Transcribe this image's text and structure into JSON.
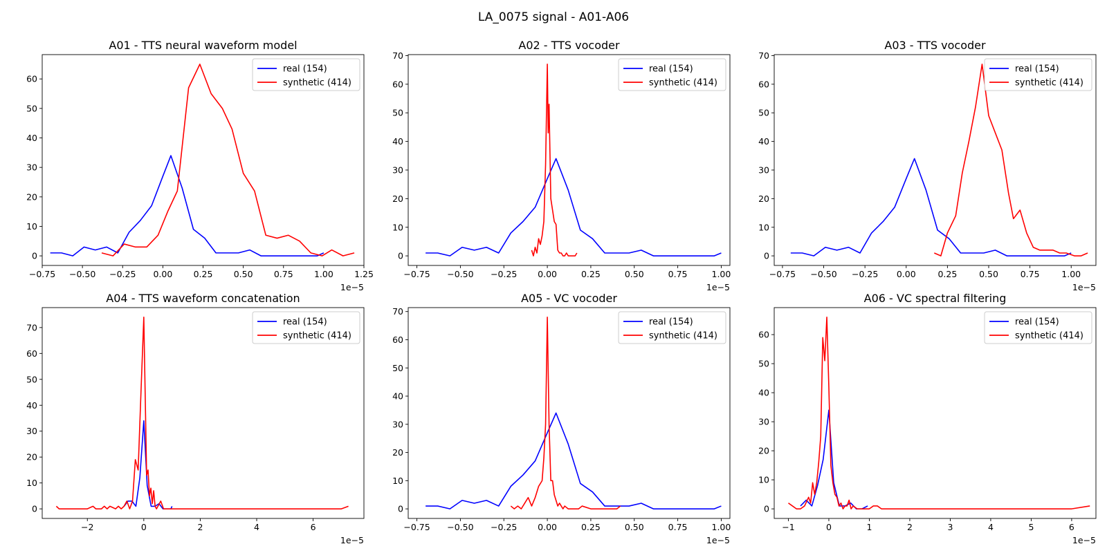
{
  "figure": {
    "suptitle": "LA_0075 signal - A01-A06"
  },
  "colors": {
    "real": "#0000ff",
    "synthetic": "#ff0000"
  },
  "chart_data": [
    {
      "type": "line",
      "title": "A01 - TTS neural waveform model",
      "xlim": [
        -0.75,
        1.25
      ],
      "ylim": [
        -3.25,
        68.25
      ],
      "xticks": [
        -0.75,
        -0.5,
        -0.25,
        0.0,
        0.25,
        0.5,
        0.75,
        1.0,
        1.25
      ],
      "xtick_labels": [
        "−0.75",
        "−0.50",
        "−0.25",
        "0.00",
        "0.25",
        "0.50",
        "0.75",
        "1.00",
        "1.25"
      ],
      "yticks": [
        0,
        10,
        20,
        30,
        40,
        50,
        60
      ],
      "offset_text": "1e−5",
      "legend": {
        "position": "upper-right"
      },
      "series": [
        {
          "name": "real (154)",
          "color": "real",
          "x": [
            -0.7,
            -0.63,
            -0.56,
            -0.49,
            -0.42,
            -0.35,
            -0.28,
            -0.21,
            -0.14,
            -0.07,
            0.0,
            0.05,
            0.12,
            0.19,
            0.26,
            0.33,
            0.4,
            0.47,
            0.54,
            0.61,
            0.68,
            0.75,
            0.82,
            0.89,
            0.96,
            1.0
          ],
          "y": [
            1,
            1,
            0,
            3,
            2,
            3,
            1,
            8,
            12,
            17,
            27,
            34,
            23,
            9,
            6,
            1,
            1,
            1,
            2,
            0,
            0,
            0,
            0,
            0,
            0,
            1
          ]
        },
        {
          "name": "synthetic (414)",
          "color": "synthetic",
          "x": [
            -0.38,
            -0.31,
            -0.24,
            -0.17,
            -0.1,
            -0.03,
            0.03,
            0.09,
            0.16,
            0.23,
            0.3,
            0.37,
            0.43,
            0.5,
            0.57,
            0.64,
            0.71,
            0.78,
            0.85,
            0.92,
            0.99,
            1.05,
            1.12,
            1.19
          ],
          "y": [
            1,
            0,
            4,
            3,
            3,
            7,
            15,
            22,
            57,
            65,
            55,
            50,
            43,
            28,
            22,
            7,
            6,
            7,
            5,
            1,
            0,
            2,
            0,
            1
          ]
        }
      ]
    },
    {
      "type": "line",
      "title": "A02 - TTS vocoder",
      "xlim": [
        -0.8,
        1.05
      ],
      "ylim": [
        -3.35,
        70.35
      ],
      "xticks": [
        -0.75,
        -0.5,
        -0.25,
        0.0,
        0.25,
        0.5,
        0.75,
        1.0
      ],
      "xtick_labels": [
        "−0.75",
        "−0.50",
        "−0.25",
        "0.00",
        "0.25",
        "0.50",
        "0.75",
        "1.00"
      ],
      "yticks": [
        0,
        10,
        20,
        30,
        40,
        50,
        60,
        70
      ],
      "offset_text": "1e−5",
      "legend": {
        "position": "upper-right"
      },
      "series": [
        {
          "name": "real (154)",
          "color": "real",
          "x": [
            -0.7,
            -0.63,
            -0.56,
            -0.49,
            -0.42,
            -0.35,
            -0.28,
            -0.21,
            -0.14,
            -0.07,
            0.0,
            0.05,
            0.12,
            0.19,
            0.26,
            0.33,
            0.4,
            0.47,
            0.54,
            0.61,
            0.68,
            0.75,
            0.82,
            0.89,
            0.96,
            1.0
          ],
          "y": [
            1,
            1,
            0,
            3,
            2,
            3,
            1,
            8,
            12,
            17,
            27,
            34,
            23,
            9,
            6,
            1,
            1,
            1,
            2,
            0,
            0,
            0,
            0,
            0,
            0,
            1
          ]
        },
        {
          "name": "synthetic (414)",
          "color": "synthetic",
          "x": [
            -0.09,
            -0.08,
            -0.07,
            -0.06,
            -0.05,
            -0.04,
            -0.03,
            -0.02,
            -0.01,
            0.0,
            0.005,
            0.01,
            0.02,
            0.03,
            0.04,
            0.05,
            0.06,
            0.07,
            0.08,
            0.09,
            0.1,
            0.11,
            0.12,
            0.13,
            0.14,
            0.15,
            0.16,
            0.17
          ],
          "y": [
            2,
            0,
            3,
            1,
            6,
            4,
            7,
            12,
            32,
            67,
            43,
            53,
            20,
            16,
            12,
            11,
            2,
            1,
            1,
            0,
            0,
            1,
            0,
            0,
            0,
            0,
            0,
            1
          ]
        }
      ]
    },
    {
      "type": "line",
      "title": "A03 - TTS vocoder",
      "xlim": [
        -0.8,
        1.15
      ],
      "ylim": [
        -3.35,
        70.35
      ],
      "xticks": [
        -0.75,
        -0.5,
        -0.25,
        0.0,
        0.25,
        0.5,
        0.75,
        1.0
      ],
      "xtick_labels": [
        "−0.75",
        "−0.50",
        "−0.25",
        "0.00",
        "0.25",
        "0.50",
        "0.75",
        "1.00"
      ],
      "yticks": [
        0,
        10,
        20,
        30,
        40,
        50,
        60,
        70
      ],
      "offset_text": "1e−5",
      "legend": {
        "position": "upper-right"
      },
      "series": [
        {
          "name": "real (154)",
          "color": "real",
          "x": [
            -0.7,
            -0.63,
            -0.56,
            -0.49,
            -0.42,
            -0.35,
            -0.28,
            -0.21,
            -0.14,
            -0.07,
            0.0,
            0.05,
            0.12,
            0.19,
            0.26,
            0.33,
            0.4,
            0.47,
            0.54,
            0.61,
            0.68,
            0.75,
            0.82,
            0.89,
            0.96,
            1.0
          ],
          "y": [
            1,
            1,
            0,
            3,
            2,
            3,
            1,
            8,
            12,
            17,
            27,
            34,
            23,
            9,
            6,
            1,
            1,
            1,
            2,
            0,
            0,
            0,
            0,
            0,
            0,
            1
          ]
        },
        {
          "name": "synthetic (414)",
          "color": "synthetic",
          "x": [
            0.17,
            0.21,
            0.25,
            0.3,
            0.34,
            0.38,
            0.42,
            0.46,
            0.5,
            0.54,
            0.58,
            0.62,
            0.65,
            0.69,
            0.73,
            0.77,
            0.81,
            0.85,
            0.89,
            0.93,
            0.97,
            1.02,
            1.06,
            1.1
          ],
          "y": [
            1,
            0,
            8,
            14,
            29,
            40,
            52,
            67,
            49,
            43,
            37,
            22,
            13,
            16,
            8,
            3,
            2,
            2,
            2,
            1,
            1,
            0,
            0,
            1
          ]
        }
      ]
    },
    {
      "type": "line",
      "title": "A04 - TTS waveform concatenation",
      "xlim": [
        -3.6,
        7.8
      ],
      "ylim": [
        -3.7,
        77.7
      ],
      "xticks": [
        -2,
        0,
        2,
        4,
        6
      ],
      "xtick_labels": [
        "−2",
        "0",
        "2",
        "4",
        "6"
      ],
      "yticks": [
        0,
        10,
        20,
        30,
        40,
        50,
        60,
        70
      ],
      "offset_text": "1e−5",
      "legend": {
        "position": "upper-right"
      },
      "series": [
        {
          "name": "real (154)",
          "color": "real",
          "x": [
            -0.7,
            -0.56,
            -0.42,
            -0.28,
            -0.14,
            0.0,
            0.12,
            0.26,
            0.4,
            0.54,
            0.68,
            0.82,
            0.96,
            1.0
          ],
          "y": [
            1,
            3,
            3,
            1,
            12,
            34,
            9,
            1,
            1,
            2,
            0,
            0,
            0,
            1
          ]
        },
        {
          "name": "synthetic (414)",
          "color": "synthetic",
          "x": [
            -3.1,
            -3.0,
            -2.5,
            -2.0,
            -1.8,
            -1.7,
            -1.5,
            -1.4,
            -1.3,
            -1.2,
            -1.0,
            -0.9,
            -0.8,
            -0.7,
            -0.6,
            -0.5,
            -0.4,
            -0.3,
            -0.2,
            -0.1,
            0.0,
            0.1,
            0.15,
            0.2,
            0.25,
            0.3,
            0.35,
            0.4,
            0.45,
            0.5,
            0.6,
            0.7,
            0.8,
            1.0,
            2.0,
            3.0,
            4.0,
            5.0,
            6.0,
            7.0,
            7.25
          ],
          "y": [
            1,
            0,
            0,
            0,
            1,
            0,
            0,
            1,
            0,
            1,
            0,
            1,
            0,
            1,
            3,
            0,
            3,
            19,
            15,
            45,
            74,
            13,
            15,
            5,
            8,
            2,
            7,
            1,
            0,
            1,
            3,
            0,
            0,
            0,
            0,
            0,
            0,
            0,
            0,
            0,
            1
          ]
        }
      ]
    },
    {
      "type": "line",
      "title": "A05 - VC vocoder",
      "xlim": [
        -0.8,
        1.05
      ],
      "ylim": [
        -3.4,
        71.4
      ],
      "xticks": [
        -0.75,
        -0.5,
        -0.25,
        0.0,
        0.25,
        0.5,
        0.75,
        1.0
      ],
      "xtick_labels": [
        "−0.75",
        "−0.50",
        "−0.25",
        "0.00",
        "0.25",
        "0.50",
        "0.75",
        "1.00"
      ],
      "yticks": [
        0,
        10,
        20,
        30,
        40,
        50,
        60,
        70
      ],
      "offset_text": "1e−5",
      "legend": {
        "position": "upper-right"
      },
      "series": [
        {
          "name": "real (154)",
          "color": "real",
          "x": [
            -0.7,
            -0.63,
            -0.56,
            -0.49,
            -0.42,
            -0.35,
            -0.28,
            -0.21,
            -0.14,
            -0.07,
            0.0,
            0.05,
            0.12,
            0.19,
            0.26,
            0.33,
            0.4,
            0.47,
            0.54,
            0.61,
            0.68,
            0.75,
            0.82,
            0.89,
            0.96,
            1.0
          ],
          "y": [
            1,
            1,
            0,
            3,
            2,
            3,
            1,
            8,
            12,
            17,
            27,
            34,
            23,
            9,
            6,
            1,
            1,
            1,
            2,
            0,
            0,
            0,
            0,
            0,
            0,
            1
          ]
        },
        {
          "name": "synthetic (414)",
          "color": "synthetic",
          "x": [
            -0.21,
            -0.19,
            -0.17,
            -0.15,
            -0.13,
            -0.11,
            -0.09,
            -0.07,
            -0.05,
            -0.03,
            -0.02,
            -0.01,
            0.0,
            0.01,
            0.02,
            0.03,
            0.04,
            0.05,
            0.06,
            0.07,
            0.08,
            0.09,
            0.1,
            0.12,
            0.14,
            0.16,
            0.18,
            0.2,
            0.25,
            0.3,
            0.35,
            0.4,
            0.42
          ],
          "y": [
            1,
            0,
            1,
            0,
            2,
            4,
            1,
            4,
            8,
            10,
            18,
            30,
            68,
            30,
            10,
            10,
            5,
            3,
            1,
            2,
            1,
            0,
            1,
            0,
            0,
            0,
            0,
            1,
            0,
            0,
            0,
            0,
            1
          ]
        }
      ]
    },
    {
      "type": "line",
      "title": "A06 - VC spectral filtering",
      "xlim": [
        -1.35,
        6.6
      ],
      "ylim": [
        -3.3,
        69.3
      ],
      "xticks": [
        -1,
        0,
        1,
        2,
        3,
        4,
        5,
        6
      ],
      "xtick_labels": [
        "−1",
        "0",
        "1",
        "2",
        "3",
        "4",
        "5",
        "6"
      ],
      "yticks": [
        0,
        10,
        20,
        30,
        40,
        50,
        60
      ],
      "offset_text": "1e−5",
      "legend": {
        "position": "upper-right"
      },
      "series": [
        {
          "name": "real (154)",
          "color": "real",
          "x": [
            -0.7,
            -0.56,
            -0.42,
            -0.28,
            -0.14,
            0.0,
            0.12,
            0.26,
            0.4,
            0.54,
            0.68,
            0.82,
            0.96
          ],
          "y": [
            1,
            3,
            1,
            8,
            17,
            34,
            9,
            1,
            1,
            2,
            0,
            0,
            1
          ]
        },
        {
          "name": "synthetic (414)",
          "color": "synthetic",
          "x": [
            -1.0,
            -0.9,
            -0.8,
            -0.7,
            -0.6,
            -0.5,
            -0.45,
            -0.4,
            -0.35,
            -0.3,
            -0.25,
            -0.2,
            -0.15,
            -0.1,
            -0.05,
            0.0,
            0.05,
            0.1,
            0.15,
            0.2,
            0.25,
            0.3,
            0.35,
            0.4,
            0.45,
            0.5,
            0.55,
            0.6,
            0.7,
            0.8,
            1.0,
            1.1,
            1.2,
            1.3,
            2.0,
            3.0,
            4.0,
            5.0,
            6.0,
            6.45
          ],
          "y": [
            2,
            1,
            0,
            0,
            1,
            4,
            2,
            9,
            5,
            9,
            16,
            25,
            59,
            51,
            66,
            42,
            15,
            9,
            5,
            4,
            1,
            2,
            0,
            1,
            1,
            3,
            0,
            1,
            0,
            0,
            0,
            1,
            1,
            0,
            0,
            0,
            0,
            0,
            0,
            1
          ]
        }
      ]
    }
  ]
}
